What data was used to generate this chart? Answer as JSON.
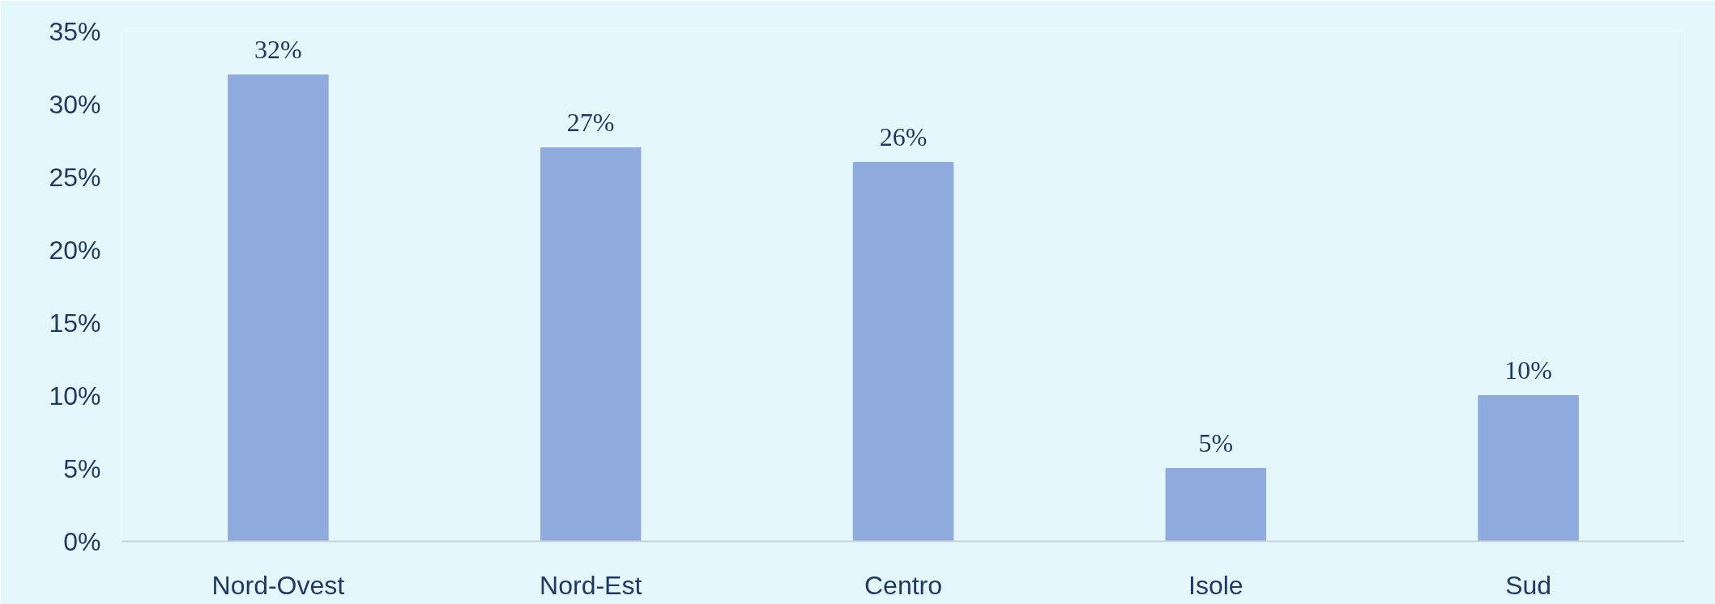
{
  "chart_data": {
    "type": "bar",
    "categories": [
      "Nord-Ovest",
      "Nord-Est",
      "Centro",
      "Isole",
      "Sud"
    ],
    "values": [
      32,
      27,
      26,
      5,
      10
    ],
    "value_labels": [
      "32%",
      "27%",
      "26%",
      "5%",
      "10%"
    ],
    "color": "#8faadc",
    "ylim": [
      0,
      35
    ],
    "yticks": [
      {
        "value": 0,
        "label": "0%"
      },
      {
        "value": 5,
        "label": "5%"
      },
      {
        "value": 10,
        "label": "10%"
      },
      {
        "value": 15,
        "label": "15%"
      },
      {
        "value": 20,
        "label": "20%"
      },
      {
        "value": 25,
        "label": "25%"
      },
      {
        "value": 30,
        "label": "30%"
      },
      {
        "value": 35,
        "label": "35%"
      }
    ],
    "grid": false
  }
}
